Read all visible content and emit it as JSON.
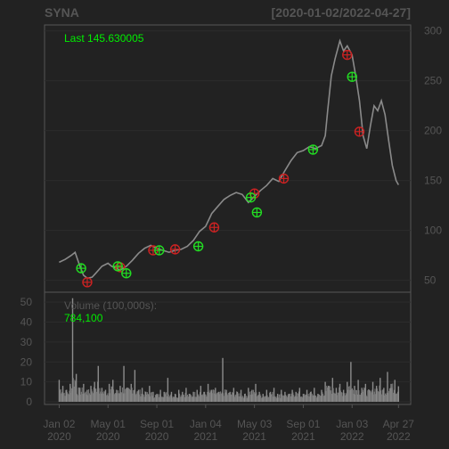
{
  "chart_data": {
    "type": "line",
    "symbol": "SYNA",
    "date_range": "[2020-01-02/2022-04-27]",
    "last_label": "Last 145.630005",
    "volume_label": "Volume (100,000s):",
    "volume_last": "784,100",
    "x_ticks": [
      {
        "label": "Jan 02",
        "year": "2020",
        "x": 0
      },
      {
        "label": "May 01",
        "year": "2020",
        "x": 4
      },
      {
        "label": "Sep 01",
        "year": "2020",
        "x": 8
      },
      {
        "label": "Jan 04",
        "year": "2021",
        "x": 12
      },
      {
        "label": "May 03",
        "year": "2021",
        "x": 16
      },
      {
        "label": "Sep 01",
        "year": "2021",
        "x": 20
      },
      {
        "label": "Jan 03",
        "year": "2022",
        "x": 24
      },
      {
        "label": "Apr 27",
        "year": "2022",
        "x": 27.8
      }
    ],
    "x_range": [
      -1.2,
      28.8
    ],
    "price_axis": {
      "ticks": [
        50,
        100,
        150,
        200,
        250,
        300
      ],
      "range": [
        38,
        306
      ]
    },
    "volume_axis": {
      "ticks": [
        0,
        10,
        20,
        30,
        40,
        50
      ],
      "range": [
        0,
        55
      ]
    },
    "price_series": [
      [
        0,
        68
      ],
      [
        0.5,
        71
      ],
      [
        1.0,
        75
      ],
      [
        1.3,
        78
      ],
      [
        1.7,
        64
      ],
      [
        2.0,
        55
      ],
      [
        2.3,
        52
      ],
      [
        2.7,
        53
      ],
      [
        3.0,
        57
      ],
      [
        3.5,
        64
      ],
      [
        4.0,
        67
      ],
      [
        4.3,
        64
      ],
      [
        4.7,
        62
      ],
      [
        5.0,
        60
      ],
      [
        5.5,
        64
      ],
      [
        6.0,
        70
      ],
      [
        6.5,
        77
      ],
      [
        7.0,
        82
      ],
      [
        7.5,
        85
      ],
      [
        8.0,
        82
      ],
      [
        8.5,
        80
      ],
      [
        9.0,
        78
      ],
      [
        9.5,
        80
      ],
      [
        10.0,
        81
      ],
      [
        10.5,
        84
      ],
      [
        11.0,
        90
      ],
      [
        11.5,
        99
      ],
      [
        12.0,
        104
      ],
      [
        12.5,
        117
      ],
      [
        13.0,
        124
      ],
      [
        13.5,
        131
      ],
      [
        14.0,
        135
      ],
      [
        14.5,
        138
      ],
      [
        15.0,
        136
      ],
      [
        15.5,
        128
      ],
      [
        16.0,
        134
      ],
      [
        16.5,
        140
      ],
      [
        17.0,
        145
      ],
      [
        17.5,
        152
      ],
      [
        18.0,
        149
      ],
      [
        18.5,
        160
      ],
      [
        19.0,
        170
      ],
      [
        19.5,
        178
      ],
      [
        20.0,
        180
      ],
      [
        20.5,
        184
      ],
      [
        21.0,
        182
      ],
      [
        21.5,
        185
      ],
      [
        21.8,
        195
      ],
      [
        22.0,
        220
      ],
      [
        22.3,
        255
      ],
      [
        22.6,
        272
      ],
      [
        23.0,
        290
      ],
      [
        23.3,
        280
      ],
      [
        23.6,
        285
      ],
      [
        24.0,
        276
      ],
      [
        24.3,
        255
      ],
      [
        24.6,
        230
      ],
      [
        24.9,
        195
      ],
      [
        25.2,
        182
      ],
      [
        25.5,
        205
      ],
      [
        25.8,
        225
      ],
      [
        26.1,
        220
      ],
      [
        26.4,
        230
      ],
      [
        26.7,
        216
      ],
      [
        27.0,
        190
      ],
      [
        27.3,
        165
      ],
      [
        27.6,
        150
      ],
      [
        27.8,
        145.63
      ]
    ],
    "buy_signals": [
      [
        1.8,
        62
      ],
      [
        4.8,
        64
      ],
      [
        5.5,
        57
      ],
      [
        8.2,
        80
      ],
      [
        11.4,
        84
      ],
      [
        15.7,
        133
      ],
      [
        16.2,
        118
      ],
      [
        20.8,
        181
      ],
      [
        24.0,
        254
      ]
    ],
    "sell_signals": [
      [
        2.3,
        48
      ],
      [
        5.0,
        63
      ],
      [
        7.7,
        80
      ],
      [
        9.5,
        81
      ],
      [
        12.7,
        103
      ],
      [
        16.0,
        137
      ],
      [
        18.4,
        152
      ],
      [
        23.6,
        276
      ],
      [
        24.6,
        199
      ]
    ],
    "volume_series": [
      [
        0.0,
        11
      ],
      [
        0.3,
        8
      ],
      [
        0.6,
        6
      ],
      [
        0.9,
        9
      ],
      [
        1.1,
        52
      ],
      [
        1.4,
        14
      ],
      [
        1.7,
        7
      ],
      [
        2.0,
        9
      ],
      [
        2.3,
        6
      ],
      [
        2.6,
        8
      ],
      [
        2.9,
        10
      ],
      [
        3.2,
        18
      ],
      [
        3.5,
        7
      ],
      [
        3.8,
        6
      ],
      [
        4.1,
        9
      ],
      [
        4.4,
        11
      ],
      [
        4.7,
        6
      ],
      [
        5.0,
        8
      ],
      [
        5.3,
        18
      ],
      [
        5.6,
        7
      ],
      [
        5.9,
        9
      ],
      [
        6.2,
        16
      ],
      [
        6.5,
        6
      ],
      [
        6.8,
        7
      ],
      [
        7.1,
        5
      ],
      [
        7.4,
        8
      ],
      [
        7.7,
        5
      ],
      [
        8.0,
        4
      ],
      [
        8.3,
        6
      ],
      [
        8.6,
        5
      ],
      [
        8.9,
        12
      ],
      [
        9.2,
        5
      ],
      [
        9.5,
        4
      ],
      [
        9.8,
        6
      ],
      [
        10.1,
        5
      ],
      [
        10.4,
        7
      ],
      [
        10.7,
        4
      ],
      [
        11.0,
        5
      ],
      [
        11.3,
        6
      ],
      [
        11.6,
        8
      ],
      [
        11.9,
        5
      ],
      [
        12.2,
        9
      ],
      [
        12.5,
        6
      ],
      [
        12.8,
        7
      ],
      [
        13.1,
        5
      ],
      [
        13.4,
        22
      ],
      [
        13.7,
        6
      ],
      [
        14.0,
        5
      ],
      [
        14.3,
        7
      ],
      [
        14.6,
        5
      ],
      [
        14.9,
        6
      ],
      [
        15.2,
        4
      ],
      [
        15.5,
        7
      ],
      [
        15.8,
        6
      ],
      [
        16.1,
        9
      ],
      [
        16.4,
        5
      ],
      [
        16.7,
        4
      ],
      [
        17.0,
        6
      ],
      [
        17.3,
        5
      ],
      [
        17.6,
        7
      ],
      [
        17.9,
        4
      ],
      [
        18.2,
        6
      ],
      [
        18.5,
        5
      ],
      [
        18.8,
        4
      ],
      [
        19.1,
        6
      ],
      [
        19.4,
        5
      ],
      [
        19.7,
        7
      ],
      [
        20.0,
        4
      ],
      [
        20.3,
        6
      ],
      [
        20.6,
        5
      ],
      [
        20.9,
        7
      ],
      [
        21.2,
        4
      ],
      [
        21.5,
        6
      ],
      [
        21.8,
        10
      ],
      [
        22.1,
        8
      ],
      [
        22.4,
        12
      ],
      [
        22.7,
        7
      ],
      [
        23.0,
        9
      ],
      [
        23.3,
        6
      ],
      [
        23.6,
        10
      ],
      [
        23.9,
        20
      ],
      [
        24.2,
        8
      ],
      [
        24.5,
        11
      ],
      [
        24.8,
        7
      ],
      [
        25.1,
        9
      ],
      [
        25.4,
        6
      ],
      [
        25.7,
        10
      ],
      [
        26.0,
        8
      ],
      [
        26.3,
        12
      ],
      [
        26.6,
        7
      ],
      [
        26.9,
        15
      ],
      [
        27.2,
        9
      ],
      [
        27.5,
        11
      ],
      [
        27.8,
        7.8
      ]
    ]
  }
}
